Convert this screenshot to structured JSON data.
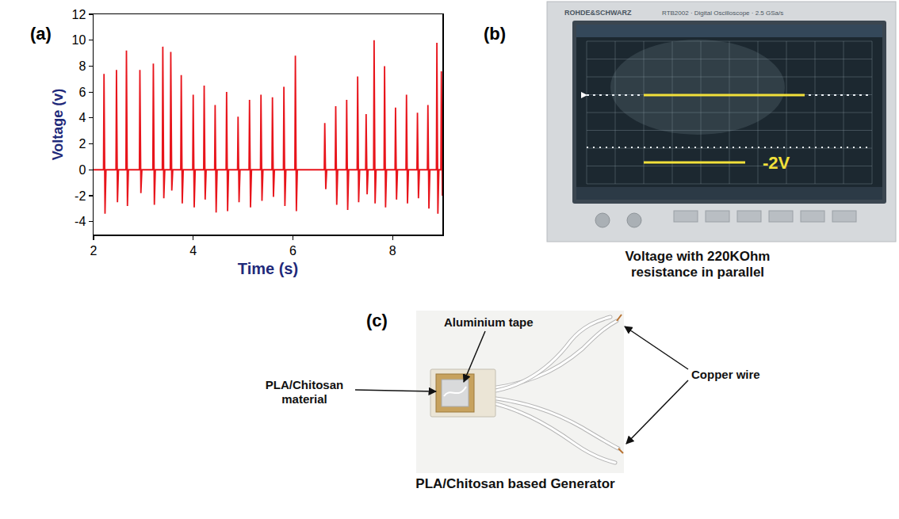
{
  "chart_data": {
    "type": "line",
    "annotations": [
      "(a)"
    ],
    "x_label": "Time (s)",
    "y_label": "Voltage (v)",
    "color": "#e8141b",
    "x": [
      2.0,
      2.2,
      2.21,
      2.23,
      2.25,
      2.45,
      2.46,
      2.48,
      2.5,
      2.65,
      2.66,
      2.68,
      2.7,
      2.92,
      2.93,
      2.95,
      2.97,
      3.19,
      3.2,
      3.22,
      3.24,
      3.38,
      3.39,
      3.41,
      3.43,
      3.54,
      3.55,
      3.57,
      3.59,
      3.75,
      3.76,
      3.78,
      3.8,
      3.99,
      4.0,
      4.02,
      4.04,
      4.21,
      4.22,
      4.24,
      4.26,
      4.43,
      4.44,
      4.46,
      4.48,
      4.66,
      4.67,
      4.69,
      4.71,
      4.89,
      4.9,
      4.92,
      4.94,
      5.12,
      5.13,
      5.15,
      5.17,
      5.35,
      5.36,
      5.38,
      5.4,
      5.58,
      5.59,
      5.61,
      5.63,
      5.81,
      5.82,
      5.84,
      5.86,
      6.04,
      6.05,
      6.07,
      6.09,
      6.63,
      6.64,
      6.66,
      6.68,
      6.85,
      6.86,
      6.88,
      6.9,
      7.07,
      7.08,
      7.1,
      7.12,
      7.29,
      7.3,
      7.32,
      7.34,
      7.46,
      7.47,
      7.49,
      7.51,
      7.62,
      7.63,
      7.65,
      7.67,
      7.83,
      7.84,
      7.86,
      7.88,
      8.05,
      8.06,
      8.08,
      8.1,
      8.27,
      8.28,
      8.3,
      8.32,
      8.49,
      8.5,
      8.52,
      8.54,
      8.7,
      8.71,
      8.73,
      8.75,
      8.88,
      8.89,
      8.91,
      8.93,
      8.97,
      8.98,
      9.0
    ],
    "values": [
      0,
      0,
      7.4,
      -3.4,
      0,
      0,
      7.7,
      -2.5,
      0,
      0,
      9.2,
      -2.8,
      0,
      0,
      7.7,
      -1.8,
      0,
      0,
      8.2,
      -2.7,
      0,
      0,
      9.5,
      -2.2,
      0,
      0,
      9.1,
      -1.6,
      0,
      0,
      7.3,
      -2.6,
      0,
      0,
      5.8,
      -2.9,
      0,
      0,
      6.5,
      -2.3,
      0,
      0,
      5.0,
      -3.3,
      0,
      0,
      6.0,
      -3.2,
      0,
      0,
      4.1,
      -2.5,
      0,
      0,
      5.4,
      -2.9,
      0,
      0,
      5.8,
      -2.4,
      0,
      0,
      5.6,
      -2.1,
      0,
      0,
      6.4,
      -2.8,
      0,
      0,
      8.8,
      -3.2,
      0,
      0,
      3.6,
      -1.5,
      0,
      0,
      4.9,
      -2.7,
      0,
      0,
      5.4,
      -3.1,
      0,
      0,
      7.2,
      -2.5,
      0,
      0,
      4.3,
      -1.9,
      0,
      0,
      10.0,
      -2.6,
      0,
      0,
      8.0,
      -2.9,
      0,
      0,
      4.8,
      -2.3,
      0,
      0,
      5.8,
      -2.6,
      0,
      0,
      4.4,
      -2.2,
      0,
      0,
      5.0,
      -3.0,
      0,
      0,
      9.8,
      -3.4,
      0,
      0,
      7.6,
      -2.0
    ],
    "xlim": [
      2,
      9
    ],
    "xticks": [
      2,
      4,
      6,
      8
    ],
    "ylim": [
      -5,
      12
    ],
    "yticks": [
      -4,
      -2,
      0,
      2,
      4,
      6,
      8,
      10,
      12
    ],
    "grid": false
  },
  "oscilloscope": {
    "label": "(b)",
    "brand": "ROHDE&SCHWARZ",
    "model": "RTB2002 · Digital Oscilloscope · 2.5 GSa/s",
    "marker_text": "-2V",
    "caption": "Voltage with 220KOhm resistance in parallel"
  },
  "generator": {
    "label": "(c)",
    "callouts": {
      "tape": "Aluminium tape",
      "material": "PLA/Chitosan material",
      "wire": "Copper wire"
    },
    "caption": "PLA/Chitosan based Generator"
  }
}
